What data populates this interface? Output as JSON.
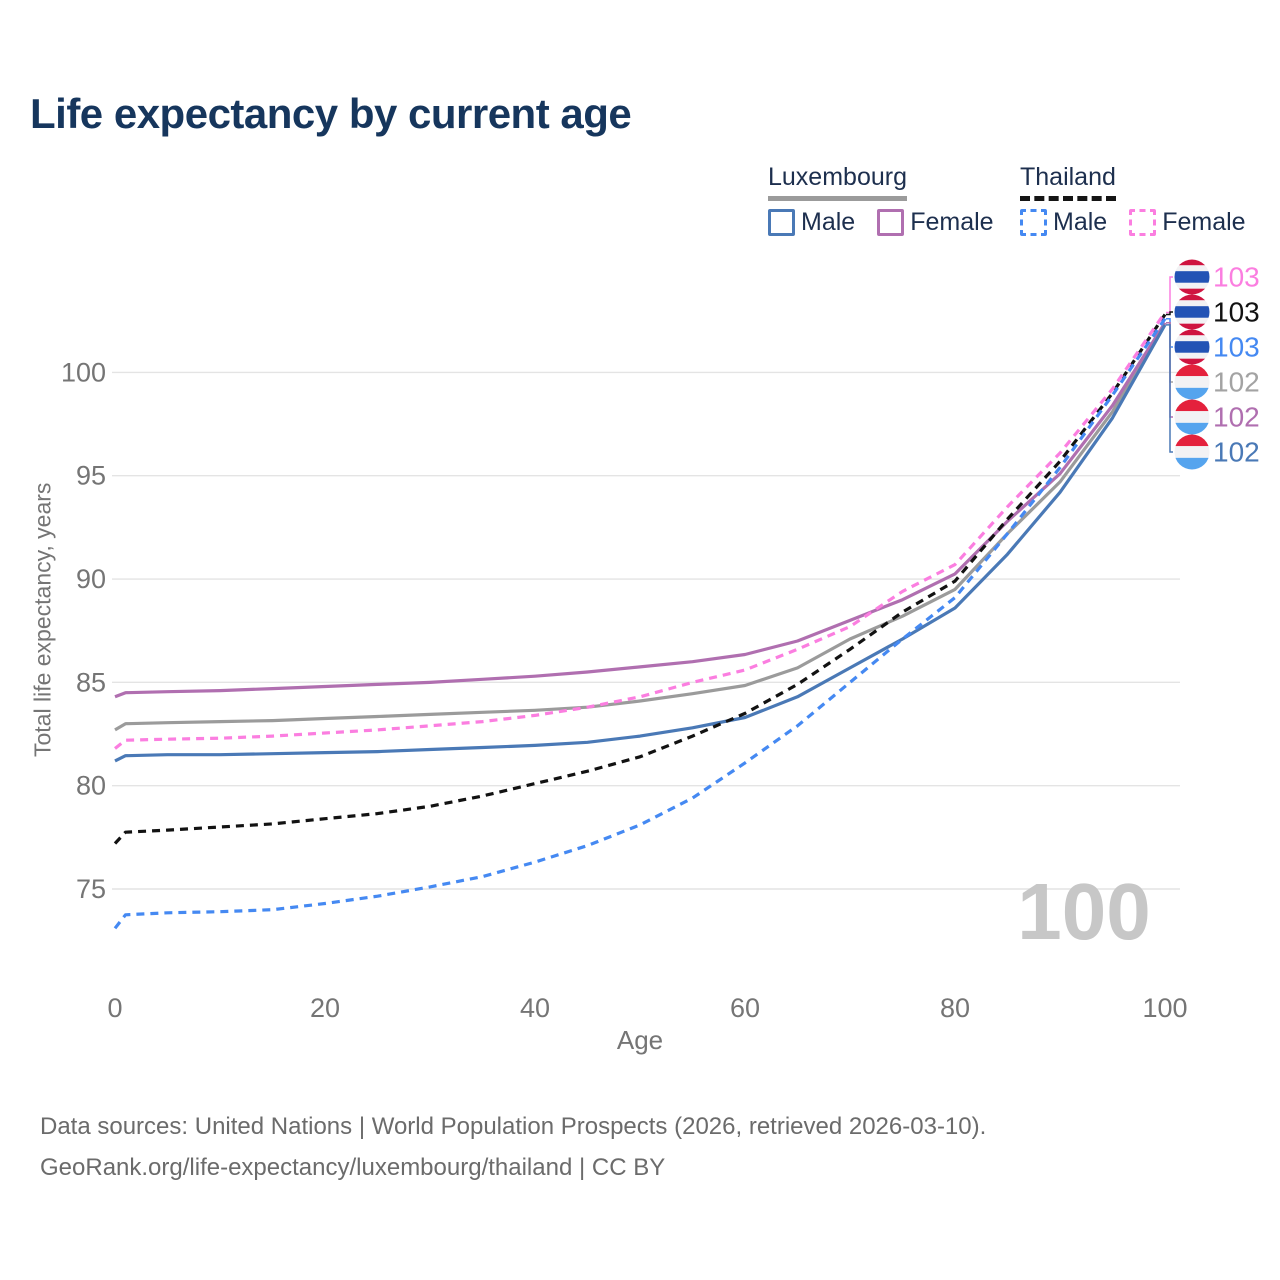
{
  "title": "Life expectancy by current age",
  "watermark": "100",
  "footer": {
    "line1": "Data sources: United Nations | World Population Prospects (2026, retrieved 2026-03-10).",
    "line2": "GeoRank.org/life-expectancy/luxembourg/thailand | CC BY"
  },
  "colors": {
    "title_text": "#16365d",
    "legend_text": "#1d2f4e",
    "axis_text": "#757575",
    "gridline": "#e4e4e4",
    "footer_text": "#6b6b6b",
    "watermark": "#c7c7c7"
  },
  "legend": {
    "groups": [
      {
        "id": "luxembourg",
        "label": "Luxembourg",
        "underline_style": "solid",
        "underline_color": "#9b9b9b",
        "items": [
          {
            "id": "lu_male",
            "label": "Male",
            "swatch_color": "#4a79b6",
            "swatch_style": "solid"
          },
          {
            "id": "lu_female",
            "label": "Female",
            "swatch_color": "#b06fb0",
            "swatch_style": "solid"
          }
        ]
      },
      {
        "id": "thailand",
        "label": "Thailand",
        "underline_style": "dashed",
        "underline_color": "#151515",
        "items": [
          {
            "id": "th_male",
            "label": "Male",
            "swatch_color": "#4589f2",
            "swatch_style": "dashed"
          },
          {
            "id": "th_female",
            "label": "Female",
            "swatch_color": "#fb7ee0",
            "swatch_style": "dashed"
          }
        ]
      }
    ]
  },
  "chart_data": {
    "type": "line",
    "title": "Life expectancy by current age",
    "xlabel": "Age",
    "ylabel": "Total life expectancy, years",
    "xlim": [
      0,
      100
    ],
    "ylim": [
      72,
      104
    ],
    "x_ticks": [
      0,
      20,
      40,
      60,
      80,
      100
    ],
    "y_ticks": [
      75,
      80,
      85,
      90,
      95,
      100
    ],
    "grid": "horizontal",
    "legend_position": "top-right",
    "series": [
      {
        "id": "lu_total",
        "name": "Luxembourg Total",
        "color": "#9b9b9b",
        "dash": false,
        "points": [
          [
            0,
            82.7
          ],
          [
            1,
            83.0
          ],
          [
            5,
            83.05
          ],
          [
            10,
            83.1
          ],
          [
            15,
            83.15
          ],
          [
            20,
            83.25
          ],
          [
            25,
            83.35
          ],
          [
            30,
            83.45
          ],
          [
            35,
            83.55
          ],
          [
            40,
            83.65
          ],
          [
            45,
            83.8
          ],
          [
            50,
            84.1
          ],
          [
            55,
            84.45
          ],
          [
            60,
            84.85
          ],
          [
            65,
            85.7
          ],
          [
            70,
            87.1
          ],
          [
            75,
            88.2
          ],
          [
            80,
            89.5
          ],
          [
            85,
            92.2
          ],
          [
            90,
            94.7
          ],
          [
            95,
            98.1
          ],
          [
            100,
            102.4
          ]
        ]
      },
      {
        "id": "lu_female",
        "name": "Luxembourg Female",
        "color": "#b06fb0",
        "dash": false,
        "points": [
          [
            0,
            84.3
          ],
          [
            1,
            84.5
          ],
          [
            5,
            84.55
          ],
          [
            10,
            84.6
          ],
          [
            15,
            84.7
          ],
          [
            20,
            84.8
          ],
          [
            25,
            84.9
          ],
          [
            30,
            85.0
          ],
          [
            35,
            85.15
          ],
          [
            40,
            85.3
          ],
          [
            45,
            85.5
          ],
          [
            50,
            85.75
          ],
          [
            55,
            86.0
          ],
          [
            60,
            86.35
          ],
          [
            65,
            87.0
          ],
          [
            70,
            88.0
          ],
          [
            75,
            89.0
          ],
          [
            80,
            90.25
          ],
          [
            85,
            92.8
          ],
          [
            90,
            95.1
          ],
          [
            95,
            98.4
          ],
          [
            100,
            102.4
          ]
        ]
      },
      {
        "id": "lu_male",
        "name": "Luxembourg Male",
        "color": "#4a79b6",
        "dash": false,
        "points": [
          [
            0,
            81.2
          ],
          [
            1,
            81.45
          ],
          [
            5,
            81.5
          ],
          [
            10,
            81.5
          ],
          [
            15,
            81.55
          ],
          [
            20,
            81.6
          ],
          [
            25,
            81.65
          ],
          [
            30,
            81.75
          ],
          [
            35,
            81.85
          ],
          [
            40,
            81.95
          ],
          [
            45,
            82.1
          ],
          [
            50,
            82.4
          ],
          [
            55,
            82.8
          ],
          [
            60,
            83.3
          ],
          [
            65,
            84.3
          ],
          [
            70,
            85.7
          ],
          [
            75,
            87.1
          ],
          [
            80,
            88.6
          ],
          [
            85,
            91.2
          ],
          [
            90,
            94.2
          ],
          [
            95,
            97.8
          ],
          [
            100,
            102.3
          ]
        ]
      },
      {
        "id": "th_total",
        "name": "Thailand Total",
        "color": "#121212",
        "dash": true,
        "points": [
          [
            0,
            77.2
          ],
          [
            1,
            77.75
          ],
          [
            5,
            77.85
          ],
          [
            10,
            78.0
          ],
          [
            15,
            78.15
          ],
          [
            20,
            78.4
          ],
          [
            25,
            78.65
          ],
          [
            30,
            79.0
          ],
          [
            35,
            79.5
          ],
          [
            40,
            80.1
          ],
          [
            45,
            80.7
          ],
          [
            50,
            81.4
          ],
          [
            55,
            82.4
          ],
          [
            60,
            83.5
          ],
          [
            65,
            84.9
          ],
          [
            70,
            86.6
          ],
          [
            75,
            88.4
          ],
          [
            80,
            89.9
          ],
          [
            85,
            92.9
          ],
          [
            90,
            95.7
          ],
          [
            95,
            99.0
          ],
          [
            100,
            102.8
          ]
        ]
      },
      {
        "id": "th_male",
        "name": "Thailand Male",
        "color": "#4589f2",
        "dash": true,
        "points": [
          [
            0,
            73.1
          ],
          [
            1,
            73.75
          ],
          [
            5,
            73.85
          ],
          [
            10,
            73.9
          ],
          [
            15,
            74.0
          ],
          [
            20,
            74.3
          ],
          [
            25,
            74.65
          ],
          [
            30,
            75.1
          ],
          [
            35,
            75.6
          ],
          [
            40,
            76.3
          ],
          [
            45,
            77.1
          ],
          [
            50,
            78.1
          ],
          [
            55,
            79.4
          ],
          [
            60,
            81.1
          ],
          [
            65,
            82.9
          ],
          [
            70,
            85.0
          ],
          [
            75,
            87.1
          ],
          [
            80,
            89.1
          ],
          [
            85,
            92.2
          ],
          [
            90,
            95.4
          ],
          [
            95,
            98.9
          ],
          [
            100,
            102.6
          ]
        ]
      },
      {
        "id": "th_female",
        "name": "Thailand Female",
        "color": "#fb7ee0",
        "dash": true,
        "points": [
          [
            0,
            81.8
          ],
          [
            1,
            82.2
          ],
          [
            5,
            82.25
          ],
          [
            10,
            82.3
          ],
          [
            15,
            82.4
          ],
          [
            20,
            82.55
          ],
          [
            25,
            82.7
          ],
          [
            30,
            82.9
          ],
          [
            35,
            83.1
          ],
          [
            40,
            83.4
          ],
          [
            45,
            83.8
          ],
          [
            50,
            84.3
          ],
          [
            55,
            85.0
          ],
          [
            60,
            85.6
          ],
          [
            65,
            86.6
          ],
          [
            70,
            87.7
          ],
          [
            75,
            89.4
          ],
          [
            80,
            90.7
          ],
          [
            85,
            93.5
          ],
          [
            90,
            96.1
          ],
          [
            95,
            99.2
          ],
          [
            100,
            102.9
          ]
        ]
      }
    ]
  },
  "endpoints": {
    "rows": [
      {
        "series": "th_female",
        "value": "103",
        "color": "#fb7ee0",
        "flag": "th"
      },
      {
        "series": "th_total",
        "value": "103",
        "color": "#121212",
        "flag": "th"
      },
      {
        "series": "th_male",
        "value": "103",
        "color": "#4589f2",
        "flag": "th"
      },
      {
        "series": "lu_total",
        "value": "102",
        "color": "#a3a3a3",
        "flag": "lu"
      },
      {
        "series": "lu_female",
        "value": "102",
        "color": "#b06fb0",
        "flag": "lu"
      },
      {
        "series": "lu_male",
        "value": "102",
        "color": "#4a79b6",
        "flag": "lu"
      }
    ]
  },
  "flags": {
    "th": {
      "name": "thailand-flag",
      "stripes": [
        {
          "color": "#cf1440",
          "frac": 0.1667
        },
        {
          "color": "#f2f2f4",
          "frac": 0.1667
        },
        {
          "color": "#2353b5",
          "frac": 0.3333
        },
        {
          "color": "#f2f2f4",
          "frac": 0.1667
        },
        {
          "color": "#cf1440",
          "frac": 0.1667
        }
      ]
    },
    "lu": {
      "name": "luxembourg-flag",
      "stripes": [
        {
          "color": "#e4213c",
          "frac": 0.3333
        },
        {
          "color": "#f2f2f4",
          "frac": 0.3334
        },
        {
          "color": "#55a4ee",
          "frac": 0.3333
        }
      ]
    }
  }
}
